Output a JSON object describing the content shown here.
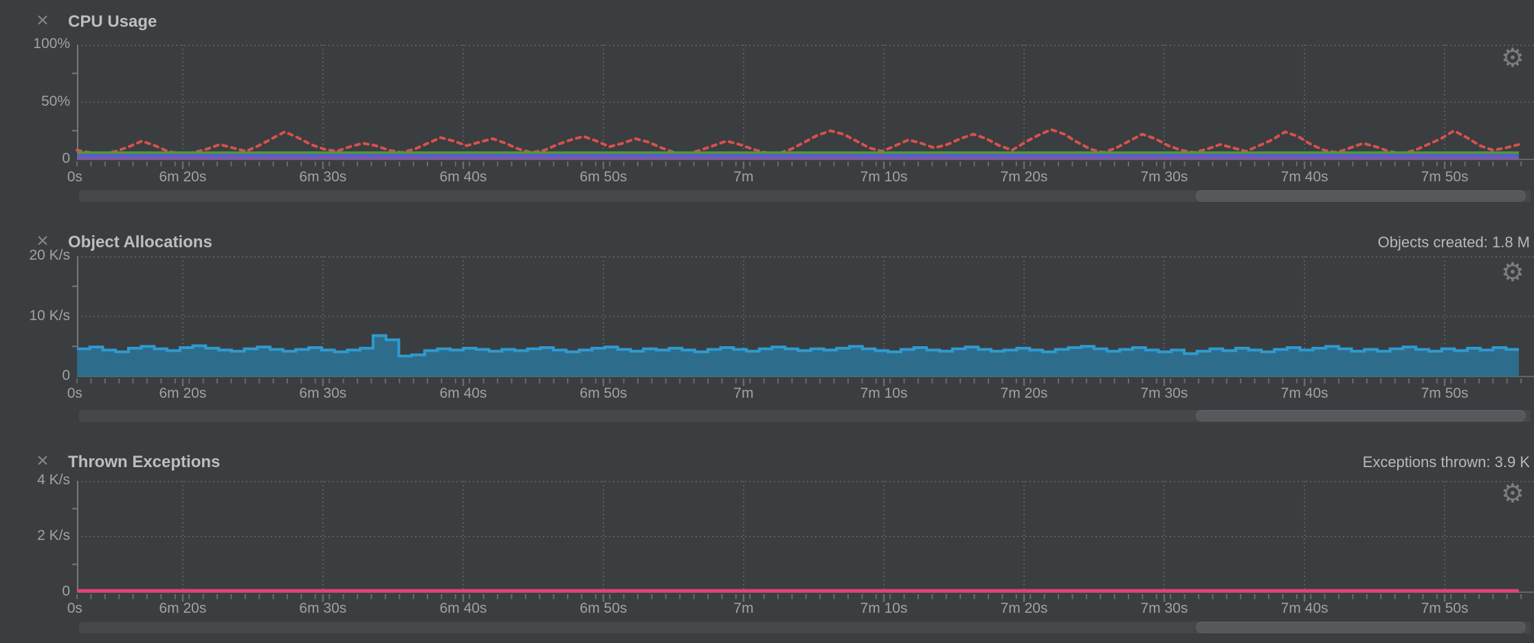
{
  "icons": {
    "close": "×",
    "gear": "⚙"
  },
  "colors": {
    "background": "#3b3e40",
    "grid": "#5b5f61",
    "axis": "#76797b",
    "baseline": "#636668",
    "tick": "#696c6e",
    "title_text": "#bcbec0",
    "label_text": "#9fa3a5",
    "stat_text": "#b7babc",
    "scrollbar_track": "#454849",
    "scrollbar_thumb": "#56595b"
  },
  "panels": [
    {
      "title": "CPU Usage",
      "stat": "",
      "chart_data": {
        "type": "line",
        "title": "CPU Usage",
        "ylabel": "%",
        "ylim": [
          0,
          100
        ],
        "grid": true,
        "y_ticks": [
          {
            "value": 100,
            "label": "100%"
          },
          {
            "value": 50,
            "label": "50%"
          },
          {
            "value": 0,
            "label": "0"
          }
        ],
        "x_ticks": {
          "labels": [
            "0s",
            "6m 20s",
            "6m 30s",
            "6m 40s",
            "6m 50s",
            "7m",
            "7m 10s",
            "7m 20s",
            "7m 30s",
            "7m 40s",
            "7m 50s"
          ],
          "fracs": [
            -0.0015,
            0.0726,
            0.1688,
            0.2651,
            0.3613,
            0.4575,
            0.5538,
            0.65,
            0.7462,
            0.8425,
            0.9387
          ]
        },
        "series": [
          {
            "name": "cpu-usage-dotted-red",
            "style": "dotted-line",
            "color": "#d9514b",
            "width": 4,
            "values": [
              8,
              6,
              5,
              7,
              11,
              16,
              12,
              7,
              5,
              6,
              9,
              13,
              10,
              7,
              12,
              18,
              24,
              19,
              13,
              9,
              7,
              11,
              14,
              12,
              8,
              6,
              9,
              14,
              19,
              16,
              12,
              15,
              18,
              14,
              9,
              6,
              8,
              13,
              17,
              20,
              16,
              11,
              14,
              18,
              15,
              10,
              6,
              5,
              8,
              12,
              16,
              13,
              9,
              6,
              5,
              9,
              15,
              21,
              25,
              22,
              16,
              10,
              7,
              12,
              17,
              14,
              10,
              13,
              18,
              22,
              18,
              12,
              8,
              15,
              21,
              26,
              22,
              15,
              9,
              6,
              10,
              16,
              22,
              18,
              12,
              8,
              6,
              9,
              13,
              10,
              7,
              12,
              17,
              24,
              20,
              13,
              8,
              6,
              10,
              14,
              11,
              7,
              5,
              8,
              13,
              18,
              25,
              19,
              12,
              8,
              10,
              13
            ]
          },
          {
            "name": "cpu-flat-green",
            "style": "flat",
            "color": "#3fa33d",
            "width": 5,
            "value": 5.5
          },
          {
            "name": "cpu-flat-dark-red",
            "style": "flat",
            "color": "#b15553",
            "width": 3,
            "value": 4.2
          },
          {
            "name": "cpu-flat-blue",
            "style": "flat",
            "color": "#4a61d2",
            "width": 6,
            "value": 2.8
          },
          {
            "name": "cpu-flat-purple",
            "style": "flat",
            "color": "#7e58a8",
            "width": 4,
            "value": 1.1
          }
        ]
      }
    },
    {
      "title": "Object Allocations",
      "stat": "Objects created: 1.8 M",
      "chart_data": {
        "type": "area",
        "title": "Object Allocations",
        "ylabel": "K/s",
        "ylim": [
          0,
          20
        ],
        "grid": true,
        "y_ticks": [
          {
            "value": 20,
            "label": "20 K/s"
          },
          {
            "value": 10,
            "label": "10 K/s"
          },
          {
            "value": 0,
            "label": "0"
          }
        ],
        "x_ticks": {
          "labels": [
            "0s",
            "6m 20s",
            "6m 30s",
            "6m 40s",
            "6m 50s",
            "7m",
            "7m 10s",
            "7m 20s",
            "7m 30s",
            "7m 40s",
            "7m 50s"
          ],
          "fracs": [
            -0.0015,
            0.0726,
            0.1688,
            0.2651,
            0.3613,
            0.4575,
            0.5538,
            0.65,
            0.7462,
            0.8425,
            0.9387
          ]
        },
        "series": [
          {
            "name": "object-allocations-step",
            "style": "step-area",
            "fill": "#2d6d8b",
            "color": "#2f9ad0",
            "width": 4,
            "values": [
              4.6,
              4.9,
              4.4,
              4.1,
              4.7,
              5.0,
              4.6,
              4.3,
              4.8,
              5.1,
              4.7,
              4.4,
              4.2,
              4.6,
              4.9,
              4.5,
              4.2,
              4.5,
              4.8,
              4.4,
              4.1,
              4.4,
              4.7,
              6.8,
              6.1,
              3.4,
              3.6,
              4.3,
              4.6,
              4.4,
              4.7,
              4.5,
              4.2,
              4.5,
              4.3,
              4.6,
              4.8,
              4.4,
              4.1,
              4.4,
              4.7,
              4.9,
              4.5,
              4.2,
              4.6,
              4.4,
              4.7,
              4.4,
              4.1,
              4.5,
              4.8,
              4.5,
              4.2,
              4.6,
              4.9,
              4.6,
              4.3,
              4.6,
              4.4,
              4.7,
              5.0,
              4.6,
              4.3,
              4.1,
              4.5,
              4.8,
              4.4,
              4.2,
              4.6,
              4.9,
              4.5,
              4.2,
              4.4,
              4.7,
              4.4,
              4.1,
              4.5,
              4.8,
              5.0,
              4.6,
              4.2,
              4.5,
              4.8,
              4.4,
              4.1,
              4.4,
              3.8,
              4.2,
              4.6,
              4.3,
              4.7,
              4.4,
              4.1,
              4.5,
              4.8,
              4.4,
              4.7,
              5.0,
              4.6,
              4.2,
              4.5,
              4.2,
              4.6,
              4.9,
              4.5,
              4.2,
              4.6,
              4.3,
              4.7,
              4.4,
              4.8,
              4.5
            ]
          }
        ]
      }
    },
    {
      "title": "Thrown Exceptions",
      "stat": "Exceptions thrown: 3.9 K",
      "chart_data": {
        "type": "line",
        "title": "Thrown Exceptions",
        "ylabel": "K/s",
        "ylim": [
          0,
          4
        ],
        "grid": true,
        "y_ticks": [
          {
            "value": 4,
            "label": "4 K/s"
          },
          {
            "value": 2,
            "label": "2 K/s"
          },
          {
            "value": 0,
            "label": "0"
          }
        ],
        "x_ticks": {
          "labels": [
            "0s",
            "6m 20s",
            "6m 30s",
            "6m 40s",
            "6m 50s",
            "7m",
            "7m 10s",
            "7m 20s",
            "7m 30s",
            "7m 40s",
            "7m 50s"
          ],
          "fracs": [
            -0.0015,
            0.0726,
            0.1688,
            0.2651,
            0.3613,
            0.4575,
            0.5538,
            0.65,
            0.7462,
            0.8425,
            0.9387
          ]
        },
        "series": [
          {
            "name": "thrown-exceptions-line",
            "style": "flat",
            "color": "#e0417a",
            "width": 5,
            "value": 0.05
          }
        ]
      }
    }
  ]
}
